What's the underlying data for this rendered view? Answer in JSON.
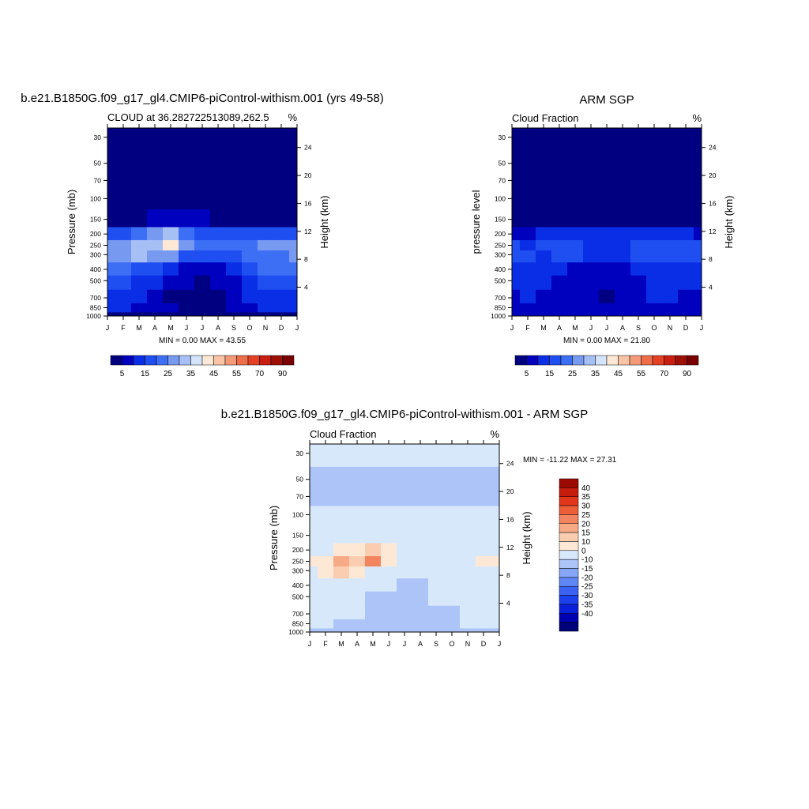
{
  "months": [
    "J",
    "F",
    "M",
    "A",
    "M",
    "J",
    "J",
    "A",
    "S",
    "O",
    "N",
    "D",
    "J"
  ],
  "pressure_ticks": [
    30,
    50,
    70,
    100,
    150,
    200,
    250,
    300,
    400,
    500,
    700,
    850,
    1000
  ],
  "height_ticks": [
    4,
    8,
    12,
    16,
    20,
    24
  ],
  "colors": {
    "abs_scale": [
      "#000080",
      "#0000bf",
      "#0a2ee6",
      "#1f4ff0",
      "#3d6ff5",
      "#7799f0",
      "#a6bff5",
      "#d4e4fa",
      "#fde8d6",
      "#f8c4a5",
      "#f49a79",
      "#ee6e49",
      "#e34024",
      "#c81e0f",
      "#9c1006",
      "#7a0000"
    ],
    "diff_scale": [
      "#00007a",
      "#0000b3",
      "#0a1fd9",
      "#1c40ec",
      "#3a63f2",
      "#5f86f5",
      "#86a6f7",
      "#adc4f8",
      "#d8e8fb",
      "#fde8d6",
      "#fbcdb0",
      "#f7aa86",
      "#f28560",
      "#ec5d38",
      "#e1361b",
      "#c61c0c",
      "#9c0b03"
    ]
  },
  "panels": {
    "model": {
      "title": "b.e21.B1850G.f09_g17_gl4.CMIP6-piControl-withism.001 (yrs 49-58)",
      "left_string": "CLOUD at 36.282722513089,262.5",
      "right_string": "%",
      "ylabel_left": "Pressure (mb)",
      "ylabel_right": "Height (km)",
      "minmax": "MIN =   0.00 MAX =  43.55"
    },
    "obs": {
      "title": "ARM SGP",
      "left_string": "Cloud Fraction",
      "right_string": "%",
      "ylabel_left": "pressure level",
      "ylabel_right": "Height (km)",
      "minmax": "MIN =   0.00 MAX =  21.80"
    },
    "diff": {
      "title": "b.e21.B1850G.f09_g17_gl4.CMIP6-piControl-withism.001 - ARM SGP",
      "left_string": "Cloud Fraction",
      "right_string": "%",
      "ylabel_left": "Pressure (mb)",
      "ylabel_right": "Height (km)",
      "minmax": "MIN = -11.22 MAX =  27.31"
    }
  },
  "abs_colorbar_labels": [
    "5",
    "15",
    "25",
    "35",
    "45",
    "55",
    "70",
    "90"
  ],
  "diff_colorbar_labels": [
    "40",
    "35",
    "30",
    "25",
    "20",
    "15",
    "10",
    "0",
    "-10",
    "-15",
    "-20",
    "-25",
    "-30",
    "-35",
    "-40"
  ],
  "chart_data": [
    {
      "type": "heatmap",
      "title": "b.e21.B1850G.f09_g17_gl4.CMIP6-piControl-withism.001 (yrs 49-58)",
      "subtitle": "CLOUD at 36.282722513089,262.5",
      "units": "%",
      "xlabel": "",
      "ylabel": "Pressure (mb)",
      "ylabel_right": "Height (km)",
      "x": [
        "J",
        "F",
        "M",
        "A",
        "M",
        "J",
        "J",
        "A",
        "S",
        "O",
        "N",
        "D",
        "J"
      ],
      "y": [
        1000,
        850,
        700,
        500,
        400,
        300,
        250,
        200,
        150,
        100,
        70,
        50,
        30
      ],
      "ylim": [
        1000,
        25
      ],
      "y_scale": "log",
      "min": 0.0,
      "max": 43.55,
      "values": [
        [
          2,
          2,
          2,
          2,
          2,
          2,
          2,
          2,
          2,
          2,
          2,
          2,
          2
        ],
        [
          11,
          10,
          7,
          6,
          6,
          4,
          3,
          4,
          6,
          6,
          10,
          11,
          11
        ],
        [
          14,
          12,
          10,
          7,
          4,
          3,
          2,
          4,
          8,
          10,
          12,
          14,
          14
        ],
        [
          18,
          16,
          14,
          11,
          7,
          5,
          4,
          6,
          9,
          12,
          15,
          17,
          18
        ],
        [
          22,
          21,
          18,
          15,
          11,
          8,
          6,
          8,
          12,
          16,
          20,
          21,
          22
        ],
        [
          25,
          26,
          32,
          28,
          25,
          18,
          15,
          15,
          19,
          20,
          22,
          24,
          25
        ],
        [
          26,
          27,
          32,
          33,
          43,
          28,
          22,
          21,
          22,
          24,
          25,
          26,
          26
        ],
        [
          15,
          17,
          22,
          26,
          30,
          24,
          17,
          15,
          15,
          17,
          16,
          16,
          15
        ],
        [
          3,
          4,
          4,
          5,
          6,
          6,
          5,
          4,
          4,
          4,
          3,
          3,
          3
        ],
        [
          1,
          1,
          1,
          1,
          1,
          1,
          1,
          1,
          1,
          1,
          1,
          1,
          1
        ],
        [
          1,
          1,
          1,
          1,
          1,
          1,
          1,
          1,
          1,
          1,
          1,
          1,
          1
        ],
        [
          0,
          0,
          0,
          0,
          0,
          0,
          0,
          0,
          0,
          0,
          0,
          0,
          0
        ],
        [
          0,
          0,
          0,
          0,
          0,
          0,
          0,
          0,
          0,
          0,
          0,
          0,
          0
        ]
      ],
      "colorbar_levels": [
        5,
        10,
        15,
        20,
        25,
        30,
        35,
        40,
        45,
        50,
        55,
        60,
        70,
        80,
        90
      ]
    },
    {
      "type": "heatmap",
      "title": "ARM SGP",
      "subtitle": "Cloud Fraction",
      "units": "%",
      "xlabel": "",
      "ylabel": "pressure level",
      "ylabel_right": "Height (km)",
      "x": [
        "J",
        "F",
        "M",
        "A",
        "M",
        "J",
        "J",
        "A",
        "S",
        "O",
        "N",
        "D",
        "J"
      ],
      "y": [
        1000,
        850,
        700,
        500,
        400,
        300,
        250,
        200,
        150,
        100,
        70,
        50,
        30
      ],
      "ylim": [
        1000,
        25
      ],
      "y_scale": "log",
      "min": 0.0,
      "max": 21.8,
      "values": [
        [
          8,
          8,
          8,
          8,
          8,
          8,
          8,
          8,
          8,
          8,
          8,
          8,
          8
        ],
        [
          8,
          9,
          9,
          8,
          7,
          6,
          6,
          7,
          8,
          9,
          9,
          8,
          8
        ],
        [
          9,
          10,
          9,
          7,
          6,
          5,
          3,
          6,
          8,
          10,
          10,
          9,
          9
        ],
        [
          12,
          11,
          10,
          9,
          8,
          7,
          6,
          7,
          9,
          11,
          12,
          12,
          12
        ],
        [
          14,
          13,
          11,
          10,
          9,
          8,
          7,
          9,
          11,
          13,
          14,
          14,
          14
        ],
        [
          16,
          15,
          14,
          16,
          17,
          13,
          12,
          14,
          16,
          17,
          17,
          18,
          16
        ],
        [
          15,
          14,
          15,
          17,
          18,
          14,
          13,
          14,
          16,
          16,
          16,
          15,
          15
        ],
        [
          8,
          9,
          10,
          12,
          14,
          12,
          10,
          11,
          12,
          12,
          11,
          10,
          8
        ],
        [
          1,
          1,
          1,
          1,
          2,
          1,
          1,
          1,
          1,
          1,
          1,
          1,
          1
        ],
        [
          0,
          0,
          0,
          0,
          0,
          0,
          0,
          0,
          0,
          0,
          0,
          0,
          0
        ],
        [
          0,
          0,
          0,
          0,
          0,
          0,
          0,
          0,
          0,
          0,
          0,
          0,
          0
        ],
        [
          0,
          0,
          0,
          0,
          0,
          0,
          0,
          0,
          0,
          0,
          0,
          0,
          0
        ],
        [
          0,
          0,
          0,
          0,
          0,
          0,
          0,
          0,
          0,
          0,
          0,
          0,
          0
        ]
      ],
      "colorbar_levels": [
        5,
        10,
        15,
        20,
        25,
        30,
        35,
        40,
        45,
        50,
        55,
        60,
        70,
        80,
        90
      ]
    },
    {
      "type": "heatmap",
      "title": "b.e21.B1850G.f09_g17_gl4.CMIP6-piControl-withism.001 - ARM SGP",
      "subtitle": "Cloud Fraction",
      "units": "%",
      "xlabel": "",
      "ylabel": "Pressure (mb)",
      "ylabel_right": "Height (km)",
      "x": [
        "J",
        "F",
        "M",
        "A",
        "M",
        "J",
        "J",
        "A",
        "S",
        "O",
        "N",
        "D",
        "J"
      ],
      "y": [
        1000,
        850,
        700,
        500,
        400,
        300,
        250,
        200,
        150,
        100,
        70,
        50,
        30
      ],
      "ylim": [
        1000,
        25
      ],
      "y_scale": "log",
      "min": -11.22,
      "max": 27.31,
      "values": [
        [
          -2,
          -2,
          -3,
          -2,
          -2,
          -2,
          -2,
          -2,
          -2,
          -3,
          -2,
          -2,
          -2
        ],
        [
          3,
          1,
          -2,
          -2,
          -1,
          -2,
          -3,
          -3,
          -2,
          -3,
          1,
          3,
          3
        ],
        [
          5,
          2,
          1,
          0,
          -2,
          -2,
          -1,
          -2,
          -1,
          -1,
          2,
          5,
          5
        ],
        [
          6,
          5,
          4,
          2,
          -1,
          -2,
          -2,
          -1,
          0,
          1,
          3,
          5,
          6
        ],
        [
          8,
          8,
          7,
          5,
          2,
          0,
          -1,
          -1,
          1,
          3,
          6,
          7,
          8
        ],
        [
          9,
          11,
          18,
          12,
          8,
          5,
          3,
          1,
          3,
          3,
          5,
          6,
          9
        ],
        [
          11,
          13,
          20,
          16,
          27,
          14,
          9,
          7,
          6,
          8,
          9,
          11,
          11
        ],
        [
          7,
          8,
          12,
          14,
          16,
          12,
          7,
          4,
          3,
          5,
          5,
          6,
          7
        ],
        [
          2,
          3,
          3,
          4,
          4,
          5,
          4,
          3,
          3,
          3,
          2,
          2,
          2
        ],
        [
          1,
          1,
          1,
          1,
          1,
          1,
          1,
          1,
          1,
          1,
          1,
          1,
          1
        ],
        [
          -1,
          -1,
          -1,
          -1,
          -1,
          -1,
          -1,
          -1,
          -1,
          -1,
          -1,
          -1,
          -1
        ],
        [
          -1,
          -1,
          -1,
          -1,
          -1,
          -1,
          -1,
          -1,
          -1,
          -1,
          -1,
          -1,
          -1
        ],
        [
          1,
          1,
          1,
          1,
          1,
          1,
          1,
          1,
          1,
          1,
          1,
          1,
          1
        ]
      ],
      "colorbar_levels": [
        -40,
        -35,
        -30,
        -25,
        -20,
        -15,
        -10,
        0,
        10,
        15,
        20,
        25,
        30,
        35,
        40
      ]
    }
  ]
}
